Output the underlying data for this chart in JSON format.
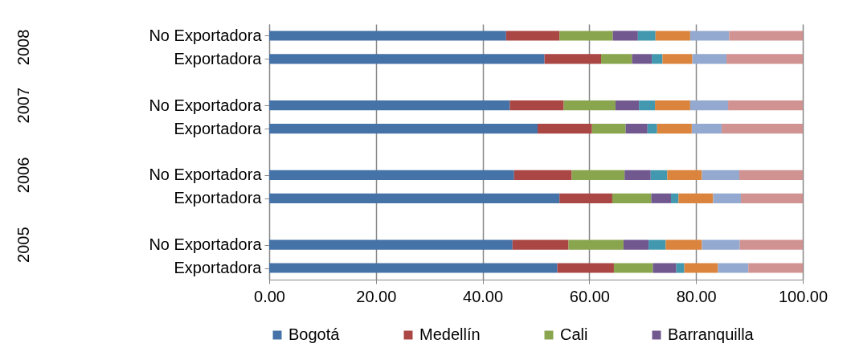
{
  "chart_data": {
    "type": "bar",
    "orientation": "horizontal",
    "stacked": true,
    "categories": [
      "No Exportadora",
      "Exportadora",
      null,
      "No Exportadora",
      "Exportadora",
      null,
      "No Exportadora",
      "Exportadora",
      null,
      "No Exportadora",
      "Exportadora"
    ],
    "series": [
      {
        "name": "Bogotá",
        "color": "#4572a7",
        "values": [
          44.4,
          51.6,
          null,
          45.1,
          50.3,
          null,
          45.9,
          54.4,
          null,
          45.6,
          54.0
        ]
      },
      {
        "name": "Medellín",
        "color": "#aa4643",
        "values": [
          10.0,
          10.6,
          null,
          10.1,
          10.2,
          null,
          10.8,
          9.9,
          null,
          10.5,
          10.6
        ]
      },
      {
        "name": "Cali",
        "color": "#89a54e",
        "values": [
          10.0,
          5.8,
          null,
          9.7,
          6.3,
          null,
          9.9,
          7.3,
          null,
          10.3,
          7.3
        ]
      },
      {
        "name": "Barranquilla",
        "color": "#71588f",
        "values": [
          4.7,
          3.7,
          null,
          4.4,
          4.1,
          null,
          4.9,
          3.7,
          null,
          4.7,
          4.4
        ]
      },
      {
        "color": "#4198af",
        "values": [
          3.3,
          2.0,
          null,
          3.0,
          1.8,
          null,
          3.1,
          1.4,
          null,
          3.2,
          1.5
        ]
      },
      {
        "color": "#db843d",
        "values": [
          6.5,
          5.6,
          null,
          6.6,
          6.5,
          null,
          6.5,
          6.5,
          null,
          6.8,
          6.3
        ]
      },
      {
        "color": "#93a9cf",
        "values": [
          7.3,
          6.4,
          null,
          7.1,
          5.6,
          null,
          7.0,
          5.2,
          null,
          7.1,
          5.7
        ]
      },
      {
        "color": "#d19392",
        "values": [
          13.8,
          14.3,
          null,
          14.0,
          15.2,
          null,
          11.9,
          11.6,
          null,
          11.8,
          10.2
        ]
      }
    ],
    "xlim": [
      0,
      100
    ],
    "xticks": [
      {
        "value": 0,
        "label": "0.00"
      },
      {
        "value": 20,
        "label": "20.00"
      },
      {
        "value": 40,
        "label": "40.00"
      },
      {
        "value": 60,
        "label": "60.00"
      },
      {
        "value": 80,
        "label": "80.00"
      },
      {
        "value": 100,
        "label": "100.00"
      }
    ],
    "grid": "x",
    "legend": "bottom",
    "annotations": [
      "2008",
      "2007",
      "2006",
      "2005"
    ]
  }
}
